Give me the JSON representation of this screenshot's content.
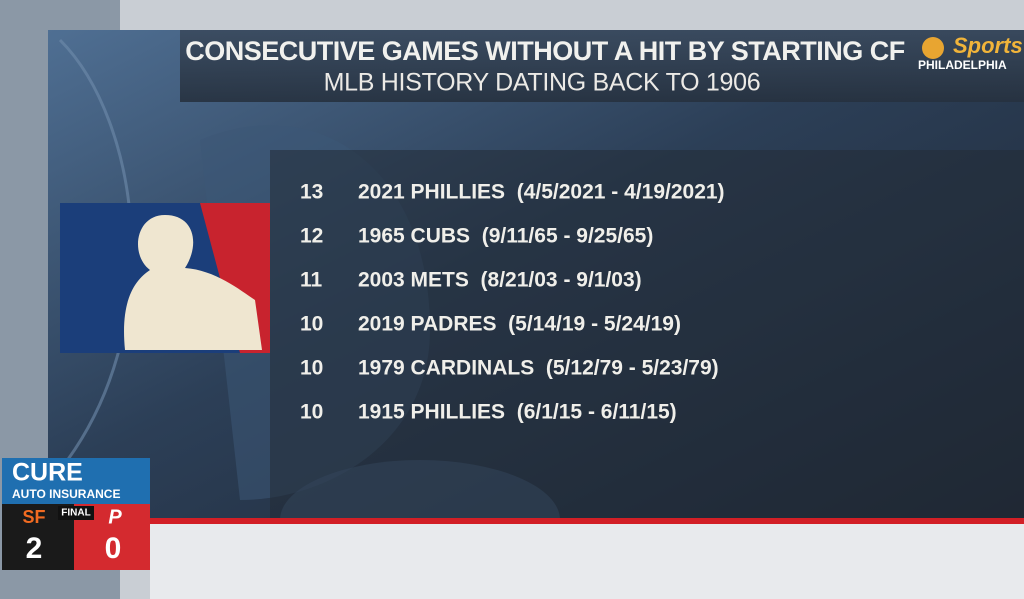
{
  "header": {
    "title": "CONSECUTIVE GAMES WITHOUT A HIT BY STARTING CF",
    "subtitle": "MLB HISTORY DATING BACK TO 1906"
  },
  "network": {
    "brand": "Sports",
    "region": "PHILADELPHIA"
  },
  "rows": [
    {
      "rank": "13",
      "label": "2021 PHILLIES  (4/5/2021 - 4/19/2021)"
    },
    {
      "rank": "12",
      "label": "1965 CUBS  (9/11/65 - 9/25/65)"
    },
    {
      "rank": "11",
      "label": "2003 METS  (8/21/03 - 9/1/03)"
    },
    {
      "rank": "10",
      "label": "2019 PADRES  (5/14/19 - 5/24/19)"
    },
    {
      "rank": "10",
      "label": "1979 CARDINALS  (5/12/79 - 5/23/79)"
    },
    {
      "rank": "10",
      "label": "1915 PHILLIES  (6/1/15 - 6/11/15)"
    }
  ],
  "scorebug": {
    "sponsor": "CURE",
    "sponsor_sub": "AUTO INSURANCE",
    "status": "FINAL",
    "away_score": "2",
    "home_score": "0"
  }
}
